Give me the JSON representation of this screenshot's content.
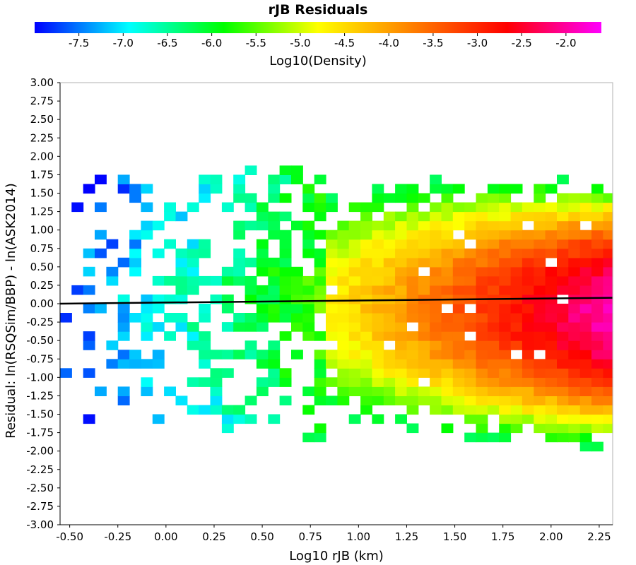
{
  "chart_data": {
    "type": "heatmap",
    "title": "rJB Residuals",
    "xlabel": "Log10 rJB (km)",
    "ylabel": "Residual: ln(RSQSim/BBP) - ln(ASK2014)",
    "colorbar": {
      "label": "Log10(Density)",
      "min": -8.0,
      "max": -1.6,
      "ticks": [
        "-7.5",
        "-7.0",
        "-6.5",
        "-6.0",
        "-5.5",
        "-5.0",
        "-4.5",
        "-4.0",
        "-3.5",
        "-3.0",
        "-2.5",
        "-2.0"
      ],
      "tick_values": [
        -7.5,
        -7.0,
        -6.5,
        -6.0,
        -5.5,
        -5.0,
        -4.5,
        -4.0,
        -3.5,
        -3.0,
        -2.5,
        -2.0
      ],
      "colormap": [
        "#0000ff",
        "#00ffff",
        "#00ff00",
        "#ffff00",
        "#ff7f00",
        "#ff0000",
        "#ff00ff"
      ]
    },
    "xlim": [
      -0.55,
      2.32
    ],
    "ylim": [
      -3.0,
      3.0
    ],
    "xticks": [
      "-0.50",
      "-0.25",
      "0.00",
      "0.25",
      "0.50",
      "0.75",
      "1.00",
      "1.25",
      "1.50",
      "1.75",
      "2.00",
      "2.25"
    ],
    "xtick_values": [
      -0.5,
      -0.25,
      0.0,
      0.25,
      0.5,
      0.75,
      1.0,
      1.25,
      1.5,
      1.75,
      2.0,
      2.25
    ],
    "yticks": [
      "3.00",
      "2.75",
      "2.50",
      "2.25",
      "2.00",
      "1.75",
      "1.50",
      "1.25",
      "1.00",
      "0.75",
      "0.50",
      "0.25",
      "0.00",
      "-0.25",
      "-0.50",
      "-0.75",
      "-1.00",
      "-1.25",
      "-1.50",
      "-1.75",
      "-2.00",
      "-2.25",
      "-2.50",
      "-2.75",
      "-3.00"
    ],
    "ytick_values": [
      3.0,
      2.75,
      2.5,
      2.25,
      2.0,
      1.75,
      1.5,
      1.25,
      1.0,
      0.75,
      0.5,
      0.25,
      0.0,
      -0.25,
      -0.5,
      -0.75,
      -1.0,
      -1.25,
      -1.5,
      -1.75,
      -2.0,
      -2.25,
      -2.5,
      -2.75,
      -3.0
    ],
    "bin_width_x": 0.06,
    "bin_height_y": 0.125,
    "density_summary": "2D histogram of residual vs Log10 rJB; sparse blue/cyan cells at small distances, dense yellow-red-magenta core at Log10 rJB 1.25-2.3, peak density (magenta) near 2.15-2.3 at residual ~0.2.",
    "trend_line": {
      "x": [
        -0.55,
        2.32
      ],
      "y": [
        0.0,
        0.08
      ]
    },
    "grid": false
  }
}
